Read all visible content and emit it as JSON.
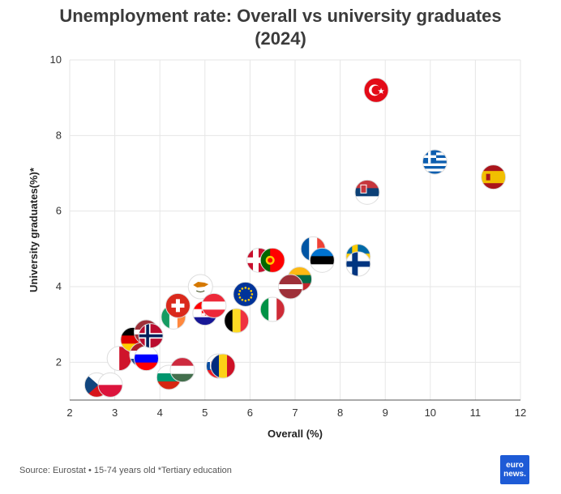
{
  "title_line1": "Unemployment rate: Overall vs university graduates",
  "title_line2": "(2024)",
  "source": "Source: Eurostat • 15-74 years old *Tertiary education",
  "logo_line1": "euro",
  "logo_line2": "news.",
  "colors": {
    "grid": "#e6e6e6",
    "axis": "#333333",
    "accent": "#1e5bd6"
  },
  "chart_data": {
    "type": "scatter",
    "title": "Unemployment rate: Overall vs university graduates (2024)",
    "xlabel": "Overall (%)",
    "ylabel": "University graduates(%)*",
    "xlim": [
      2,
      12
    ],
    "ylim": [
      1,
      10
    ],
    "xticks": [
      2,
      3,
      4,
      5,
      6,
      7,
      8,
      9,
      10,
      11,
      12
    ],
    "yticks": [
      2,
      4,
      6,
      8,
      10
    ],
    "grid": true,
    "points": [
      {
        "country": "Czechia",
        "flag": "czechia",
        "x": 2.6,
        "y": 1.4
      },
      {
        "country": "Poland",
        "flag": "poland",
        "x": 2.9,
        "y": 1.4
      },
      {
        "country": "Malta",
        "flag": "malta",
        "x": 3.1,
        "y": 2.1
      },
      {
        "country": "Germany",
        "flag": "germany",
        "x": 3.4,
        "y": 2.6
      },
      {
        "country": "Netherlands",
        "flag": "netherlands",
        "x": 3.6,
        "y": 2.2
      },
      {
        "country": "Slovenia",
        "flag": "slovenia",
        "x": 3.7,
        "y": 2.1
      },
      {
        "country": "Latvia",
        "flag": "latvia-small",
        "x": 3.7,
        "y": 2.8
      },
      {
        "country": "Norway",
        "flag": "norway",
        "x": 3.8,
        "y": 2.7
      },
      {
        "country": "Bulgaria",
        "flag": "bulgaria",
        "x": 4.2,
        "y": 1.6
      },
      {
        "country": "Hungary",
        "flag": "hungary",
        "x": 4.5,
        "y": 1.8
      },
      {
        "country": "Ireland",
        "flag": "ireland",
        "x": 4.3,
        "y": 3.2
      },
      {
        "country": "Switzerland",
        "flag": "switzerland",
        "x": 4.4,
        "y": 3.5
      },
      {
        "country": "Cyprus",
        "flag": "cyprus",
        "x": 4.9,
        "y": 4.0
      },
      {
        "country": "Croatia",
        "flag": "croatia",
        "x": 5.0,
        "y": 3.3
      },
      {
        "country": "Austria",
        "flag": "austria",
        "x": 5.2,
        "y": 3.5
      },
      {
        "country": "Slovakia",
        "flag": "slovakia",
        "x": 5.3,
        "y": 1.9
      },
      {
        "country": "Romania",
        "flag": "romania",
        "x": 5.4,
        "y": 1.9
      },
      {
        "country": "Belgium",
        "flag": "belgium",
        "x": 5.7,
        "y": 3.1
      },
      {
        "country": "European Union",
        "flag": "eu",
        "x": 5.9,
        "y": 3.8
      },
      {
        "country": "Denmark",
        "flag": "denmark",
        "x": 6.2,
        "y": 4.7
      },
      {
        "country": "Portugal",
        "flag": "portugal",
        "x": 6.5,
        "y": 4.7
      },
      {
        "country": "Italy",
        "flag": "italy",
        "x": 6.5,
        "y": 3.4
      },
      {
        "country": "Lithuania",
        "flag": "lithuania",
        "x": 7.1,
        "y": 4.2
      },
      {
        "country": "Latvia",
        "flag": "latvia",
        "x": 6.9,
        "y": 4.0
      },
      {
        "country": "France",
        "flag": "france",
        "x": 7.4,
        "y": 5.0
      },
      {
        "country": "Estonia",
        "flag": "estonia",
        "x": 7.6,
        "y": 4.7
      },
      {
        "country": "Sweden",
        "flag": "sweden",
        "x": 8.4,
        "y": 4.8
      },
      {
        "country": "Finland",
        "flag": "finland",
        "x": 8.4,
        "y": 4.6
      },
      {
        "country": "Serbia",
        "flag": "serbia",
        "x": 8.6,
        "y": 6.5
      },
      {
        "country": "Türkiye",
        "flag": "turkey",
        "x": 8.8,
        "y": 9.2
      },
      {
        "country": "Greece",
        "flag": "greece",
        "x": 10.1,
        "y": 7.3
      },
      {
        "country": "Spain",
        "flag": "spain",
        "x": 11.4,
        "y": 6.9
      }
    ]
  }
}
